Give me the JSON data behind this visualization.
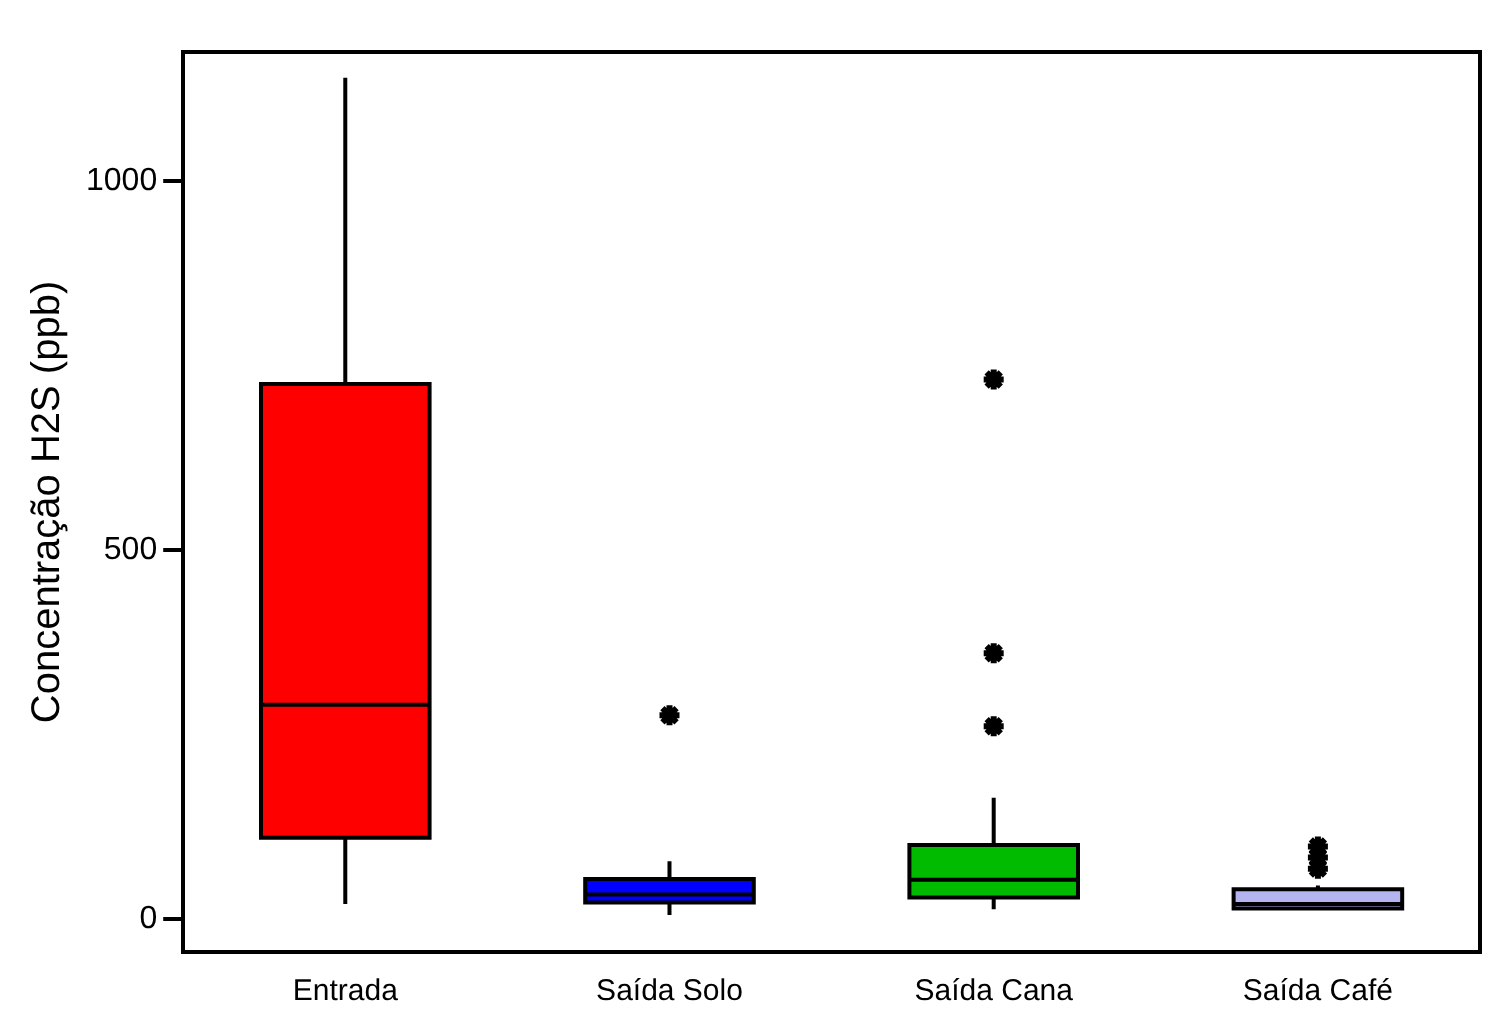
{
  "chart_data": {
    "type": "box",
    "ylabel": "Concentração H2S (ppb)",
    "categories": [
      "Entrada",
      "Saída Solo",
      "Saída Cana",
      "Saída Café"
    ],
    "colors": [
      "#ff0000",
      "#0000ff",
      "#00bb00",
      "#b4b4f0"
    ],
    "boxes": [
      {
        "low": 20,
        "q1": 110,
        "median": 290,
        "q3": 725,
        "high": 1140
      },
      {
        "low": 5,
        "q1": 22,
        "median": 33,
        "q3": 54,
        "high": 78,
        "outliers": [
          276
        ]
      },
      {
        "low": 13,
        "q1": 29,
        "median": 53,
        "q3": 100,
        "high": 164,
        "outliers": [
          261,
          360,
          731
        ]
      },
      {
        "low": 14,
        "q1": 14,
        "median": 20,
        "q3": 40,
        "high": 45,
        "outliers": [
          68,
          83,
          98
        ]
      }
    ],
    "marker": "star",
    "ylim": [
      -45,
      1175
    ],
    "yticks": [
      0,
      500,
      1000
    ],
    "grid": false,
    "legend": false
  }
}
